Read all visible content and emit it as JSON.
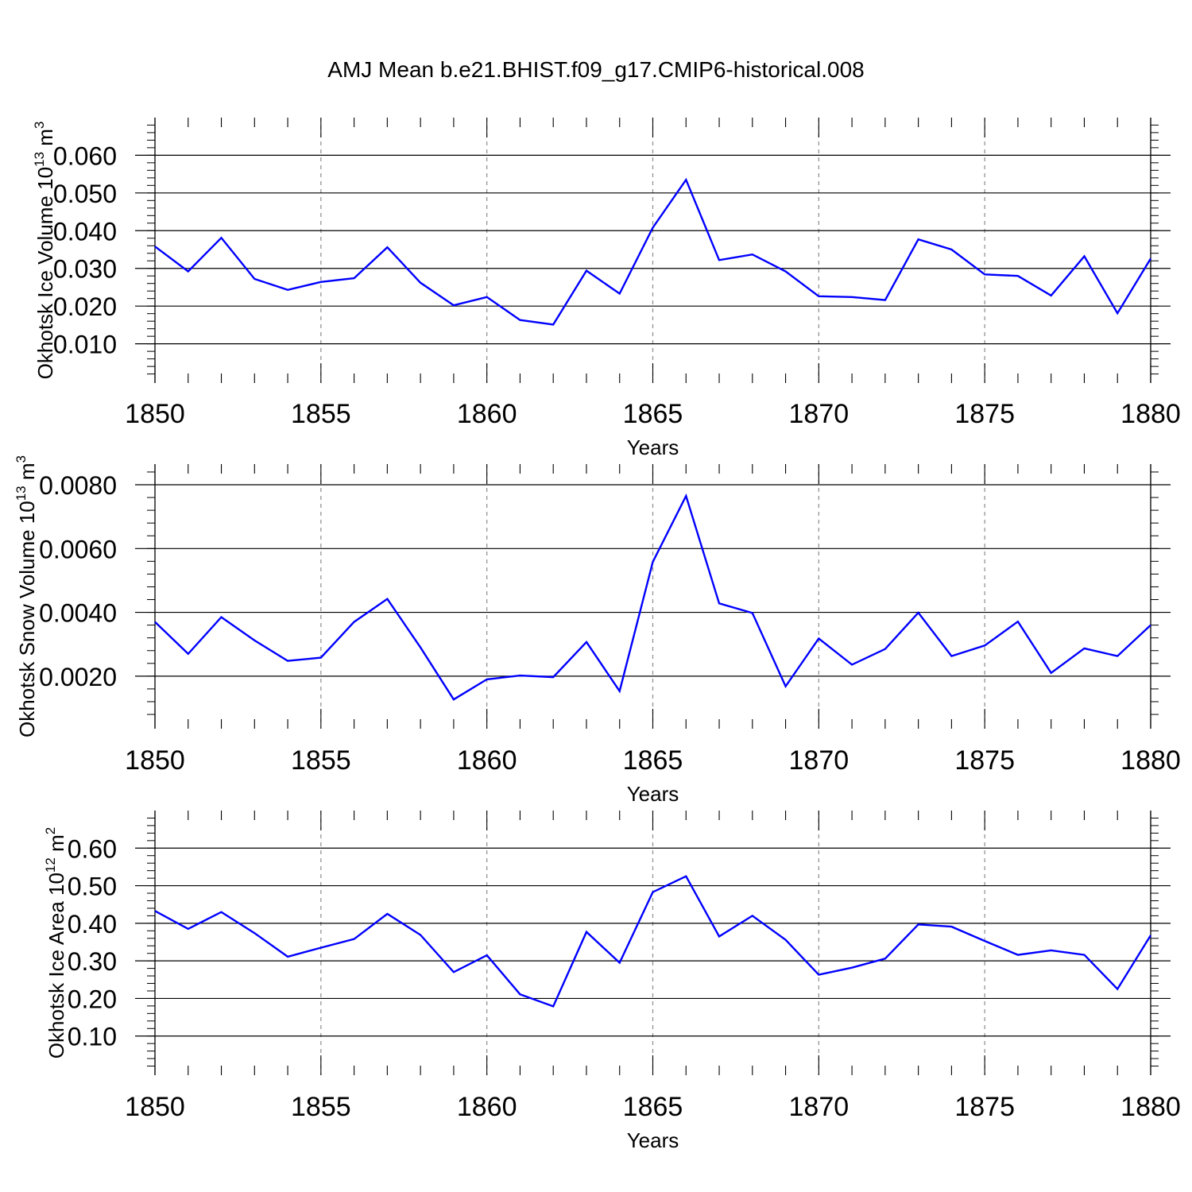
{
  "title": "AMJ Mean b.e21.BHIST.f09_g17.CMIP6-historical.008",
  "colors": {
    "line": "#0000ff",
    "axis": "#000000",
    "grid": "#8c8c8c",
    "background": "#ffffff"
  },
  "chart_data": [
    {
      "type": "line",
      "xlabel": "Years",
      "ylabel_main": "Okhotsk Ice Volume 10",
      "ylabel_sup": "13",
      "ylabel_unit": " m",
      "ylabel_unit_sup": "3",
      "xlim": [
        1850,
        1880
      ],
      "ylim": [
        0.0055,
        0.0645
      ],
      "xticks": [
        1850,
        1855,
        1860,
        1865,
        1870,
        1875,
        1880
      ],
      "yticks": [
        0.01,
        0.02,
        0.03,
        0.04,
        0.05,
        0.06
      ],
      "yticklabels": [
        "0.010",
        "0.020",
        "0.030",
        "0.040",
        "0.050",
        "0.060"
      ],
      "vgrid": [
        1855,
        1860,
        1865,
        1870,
        1875
      ],
      "series": [
        {
          "x": [
            1850,
            1851,
            1852,
            1853,
            1854,
            1855,
            1856,
            1857,
            1858,
            1859,
            1860,
            1861,
            1862,
            1863,
            1864,
            1865,
            1866,
            1867,
            1868,
            1869,
            1870,
            1871,
            1872,
            1873,
            1874,
            1875,
            1876,
            1877,
            1878,
            1879,
            1880
          ],
          "values": [
            0.0358,
            0.0292,
            0.0381,
            0.0272,
            0.0243,
            0.0264,
            0.0274,
            0.0356,
            0.0262,
            0.0202,
            0.0224,
            0.0163,
            0.0151,
            0.0294,
            0.0233,
            0.0408,
            0.0535,
            0.0322,
            0.0337,
            0.0292,
            0.0226,
            0.0224,
            0.0216,
            0.0377,
            0.035,
            0.0284,
            0.028,
            0.0228,
            0.0332,
            0.0181,
            0.0326
          ]
        }
      ]
    },
    {
      "type": "line",
      "xlabel": "Years",
      "ylabel_main": "Okhotsk Snow Volume 10",
      "ylabel_sup": "13",
      "ylabel_unit": " m",
      "ylabel_unit_sup": "3",
      "xlim": [
        1850,
        1880
      ],
      "ylim": [
        0.00105,
        0.008
      ],
      "xticks": [
        1850,
        1855,
        1860,
        1865,
        1870,
        1875,
        1880
      ],
      "yticks": [
        0.002,
        0.004,
        0.006,
        0.008
      ],
      "yticklabels": [
        "0.0020",
        "0.0040",
        "0.0060",
        "0.0080"
      ],
      "vgrid": [
        1855,
        1860,
        1865,
        1870,
        1875
      ],
      "series": [
        {
          "x": [
            1850,
            1851,
            1852,
            1853,
            1854,
            1855,
            1856,
            1857,
            1858,
            1859,
            1860,
            1861,
            1862,
            1863,
            1864,
            1865,
            1866,
            1867,
            1868,
            1869,
            1870,
            1871,
            1872,
            1873,
            1874,
            1875,
            1876,
            1877,
            1878,
            1879,
            1880
          ],
          "values": [
            0.0037,
            0.0027,
            0.00385,
            0.00312,
            0.00248,
            0.00258,
            0.0037,
            0.00442,
            0.0029,
            0.00127,
            0.0019,
            0.00202,
            0.00197,
            0.00307,
            0.00153,
            0.00558,
            0.00765,
            0.00428,
            0.00398,
            0.00168,
            0.00318,
            0.00236,
            0.00285,
            0.00399,
            0.00263,
            0.00296,
            0.00371,
            0.0021,
            0.00287,
            0.00263,
            0.0036
          ]
        }
      ]
    },
    {
      "type": "line",
      "xlabel": "Years",
      "ylabel_main": "Okhotsk Ice Area 10",
      "ylabel_sup": "12",
      "ylabel_unit": " m",
      "ylabel_unit_sup": "2",
      "xlim": [
        1850,
        1880
      ],
      "ylim": [
        0.055,
        0.645
      ],
      "xticks": [
        1850,
        1855,
        1860,
        1865,
        1870,
        1875,
        1880
      ],
      "yticks": [
        0.1,
        0.2,
        0.3,
        0.4,
        0.5,
        0.6
      ],
      "yticklabels": [
        "0.10",
        "0.20",
        "0.30",
        "0.40",
        "0.50",
        "0.60"
      ],
      "vgrid": [
        1855,
        1860,
        1865,
        1870,
        1875
      ],
      "series": [
        {
          "x": [
            1850,
            1851,
            1852,
            1853,
            1854,
            1855,
            1856,
            1857,
            1858,
            1859,
            1860,
            1861,
            1862,
            1863,
            1864,
            1865,
            1866,
            1867,
            1868,
            1869,
            1870,
            1871,
            1872,
            1873,
            1874,
            1875,
            1876,
            1877,
            1878,
            1879,
            1880
          ],
          "values": [
            0.433,
            0.385,
            0.43,
            0.374,
            0.311,
            0.335,
            0.358,
            0.425,
            0.369,
            0.27,
            0.315,
            0.211,
            0.179,
            0.377,
            0.295,
            0.483,
            0.525,
            0.365,
            0.42,
            0.356,
            0.263,
            0.282,
            0.306,
            0.397,
            0.391,
            0.353,
            0.316,
            0.328,
            0.316,
            0.225,
            0.368
          ]
        }
      ]
    }
  ]
}
